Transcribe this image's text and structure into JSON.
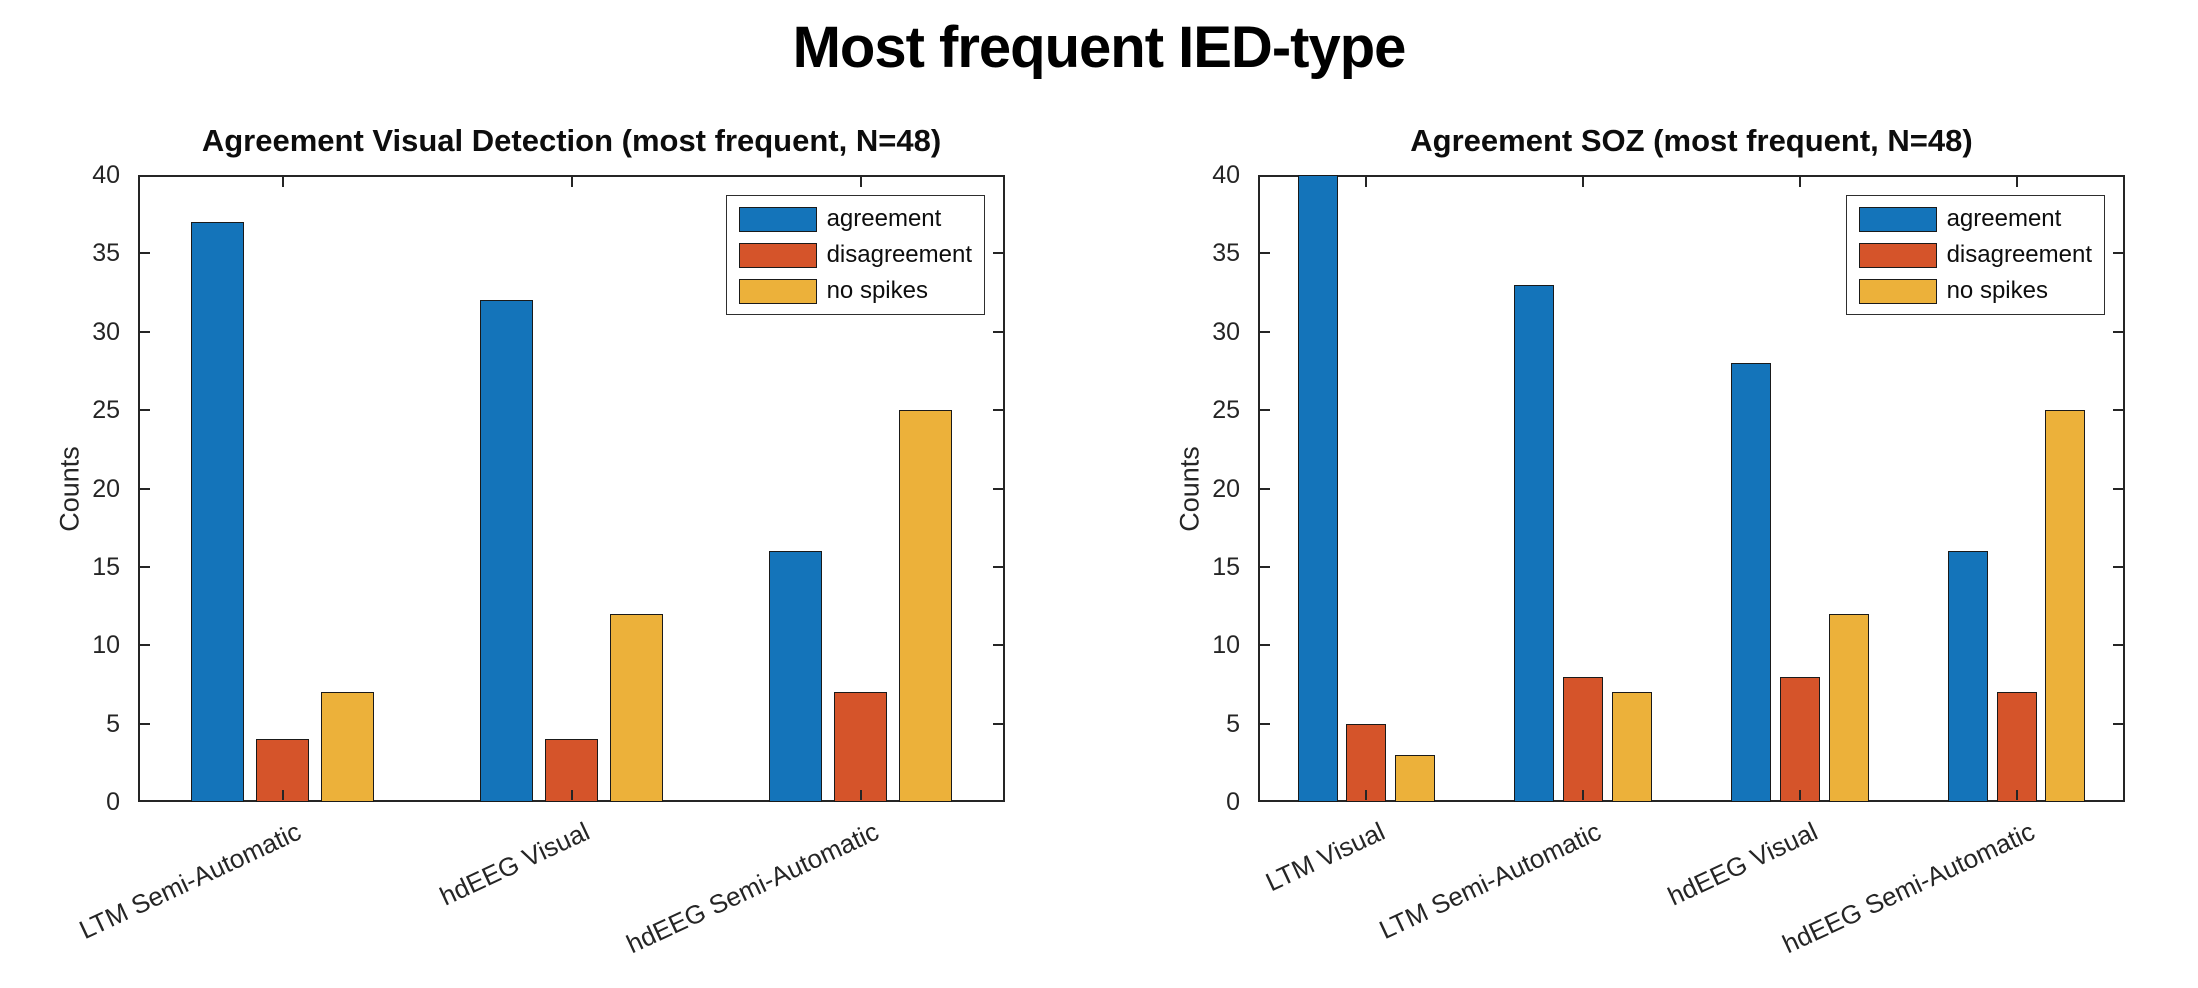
{
  "page": {
    "title": "Most frequent IED-type",
    "background": "#ffffff"
  },
  "palette": {
    "agreement": "#1474BA",
    "disagreement": "#D5542A",
    "no_spikes": "#ECB13A",
    "axis": "#252525"
  },
  "chart_data": [
    {
      "type": "bar",
      "title": "Agreement Visual Detection (most frequent, N=48)",
      "categories": [
        "LTM Semi-Automatic",
        "hdEEG Visual",
        "hdEEG Semi-Automatic"
      ],
      "series": [
        {
          "name": "agreement",
          "color": "#1474BA",
          "values": [
            37,
            32,
            16
          ]
        },
        {
          "name": "disagreement",
          "color": "#D5542A",
          "values": [
            4,
            4,
            7
          ]
        },
        {
          "name": "no spikes",
          "color": "#ECB13A",
          "values": [
            7,
            12,
            25
          ]
        }
      ],
      "xlabel": "",
      "ylabel": "Counts",
      "ylim": [
        0,
        40
      ],
      "yticks": [
        0,
        5,
        10,
        15,
        20,
        25,
        30,
        35,
        40
      ],
      "legend_position": "top-right",
      "grid": false,
      "xtick_angle_deg": 25
    },
    {
      "type": "bar",
      "title": "Agreement SOZ (most frequent, N=48)",
      "categories": [
        "LTM Visual",
        "LTM Semi-Automatic",
        "hdEEG Visual",
        "hdEEG Semi-Automatic"
      ],
      "series": [
        {
          "name": "agreement",
          "color": "#1474BA",
          "values": [
            40,
            33,
            28,
            16
          ]
        },
        {
          "name": "disagreement",
          "color": "#D5542A",
          "values": [
            5,
            8,
            8,
            7
          ]
        },
        {
          "name": "no spikes",
          "color": "#ECB13A",
          "values": [
            3,
            7,
            12,
            25
          ]
        }
      ],
      "xlabel": "",
      "ylabel": "Counts",
      "ylim": [
        0,
        40
      ],
      "yticks": [
        0,
        5,
        10,
        15,
        20,
        25,
        30,
        35,
        40
      ],
      "legend_position": "top-right",
      "grid": false,
      "xtick_angle_deg": 25
    }
  ]
}
